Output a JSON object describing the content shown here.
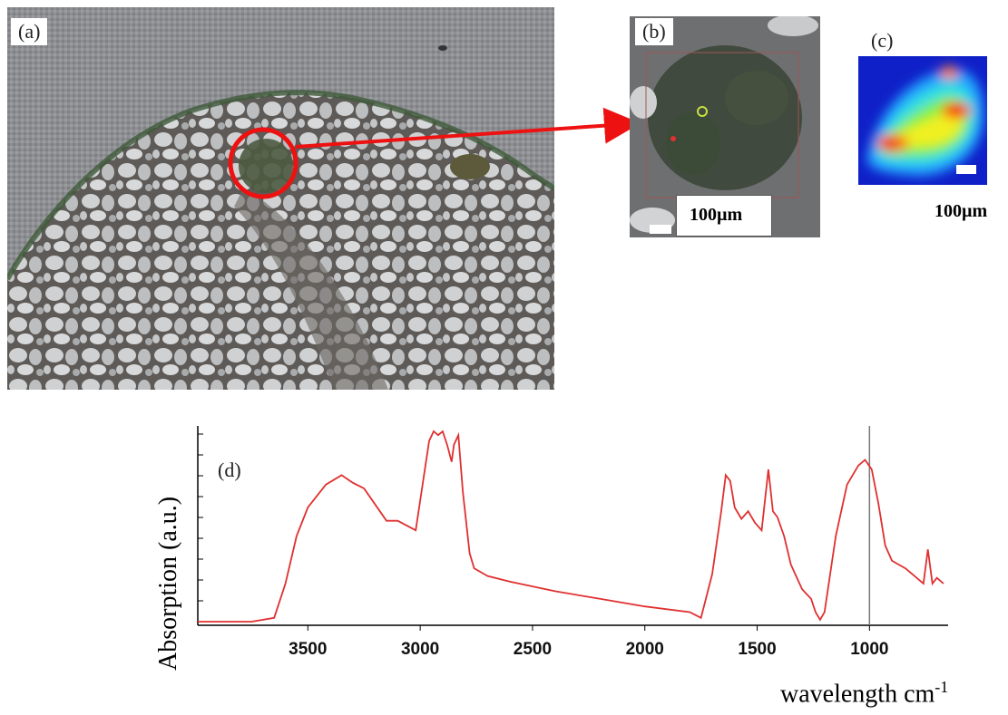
{
  "panels": {
    "a": {
      "label": "(a)"
    },
    "b": {
      "label": "(b)",
      "scalebar": "100µm"
    },
    "c": {
      "label": "(c)",
      "scalebar": "100µm"
    },
    "d": {
      "label": "(d)"
    }
  },
  "chart_data": {
    "type": "line",
    "xlabel": "wavelength cm-1",
    "ylabel": "Absorption (a.u.)",
    "x_ticks": [
      3500,
      3000,
      2500,
      2000,
      1500,
      1000
    ],
    "xlim": [
      3990,
      650
    ],
    "ylim": [
      0,
      1
    ],
    "grid": false,
    "series": [
      {
        "color": "#e03030",
        "x": [
          3990,
          3750,
          3650,
          3600,
          3550,
          3500,
          3420,
          3350,
          3300,
          3250,
          3150,
          3100,
          3020,
          2960,
          2940,
          2920,
          2900,
          2880,
          2860,
          2850,
          2830,
          2810,
          2780,
          2760,
          2700,
          2600,
          2400,
          2200,
          2000,
          1800,
          1750,
          1700,
          1660,
          1640,
          1620,
          1600,
          1570,
          1540,
          1510,
          1480,
          1450,
          1430,
          1410,
          1380,
          1350,
          1300,
          1260,
          1240,
          1220,
          1200,
          1150,
          1100,
          1050,
          1020,
          990,
          960,
          930,
          900,
          870,
          840,
          800,
          760,
          740,
          720,
          700,
          670
        ],
        "y": [
          0.0,
          0.0,
          0.02,
          0.2,
          0.45,
          0.6,
          0.72,
          0.77,
          0.73,
          0.7,
          0.53,
          0.53,
          0.48,
          0.95,
          1.0,
          0.98,
          1.0,
          0.93,
          0.84,
          0.93,
          0.98,
          0.68,
          0.36,
          0.28,
          0.24,
          0.21,
          0.16,
          0.12,
          0.08,
          0.05,
          0.02,
          0.25,
          0.58,
          0.77,
          0.74,
          0.6,
          0.54,
          0.58,
          0.52,
          0.48,
          0.8,
          0.58,
          0.55,
          0.45,
          0.3,
          0.17,
          0.12,
          0.05,
          0.01,
          0.05,
          0.45,
          0.72,
          0.82,
          0.85,
          0.8,
          0.62,
          0.4,
          0.32,
          0.3,
          0.28,
          0.24,
          0.2,
          0.38,
          0.2,
          0.23,
          0.2
        ]
      }
    ],
    "vertical_marker": 1000
  }
}
